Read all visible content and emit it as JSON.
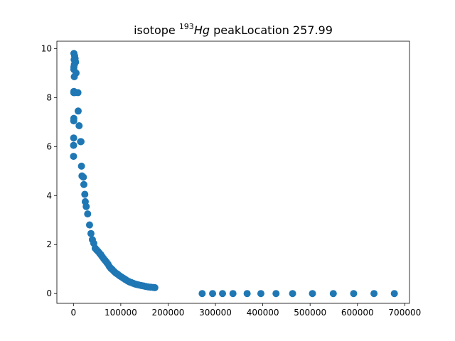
{
  "chart_data": {
    "type": "scatter",
    "title": {
      "prefix": "isotope ",
      "superscript": "193",
      "italic": "Hg",
      "suffix": " peakLocation 257.99"
    },
    "xlabel": "",
    "ylabel": "",
    "xlim": [
      -35000,
      710000
    ],
    "ylim": [
      -0.4,
      10.3
    ],
    "x_ticks": [
      {
        "value": 0,
        "label": "0"
      },
      {
        "value": 100000,
        "label": "100000"
      },
      {
        "value": 200000,
        "label": "200000"
      },
      {
        "value": 300000,
        "label": "300000"
      },
      {
        "value": 400000,
        "label": "400000"
      },
      {
        "value": 500000,
        "label": "500000"
      },
      {
        "value": 600000,
        "label": "600000"
      },
      {
        "value": 700000,
        "label": "700000"
      }
    ],
    "y_ticks": [
      {
        "value": 0,
        "label": "0"
      },
      {
        "value": 2,
        "label": "2"
      },
      {
        "value": 4,
        "label": "4"
      },
      {
        "value": 6,
        "label": "6"
      },
      {
        "value": 8,
        "label": "8"
      },
      {
        "value": 10,
        "label": "10"
      }
    ],
    "grid": false,
    "marker_color": "#1f77b4",
    "points": [
      [
        1000,
        9.8
      ],
      [
        2500,
        9.7
      ],
      [
        3500,
        9.6
      ],
      [
        1500,
        9.55
      ],
      [
        3000,
        9.5
      ],
      [
        4500,
        9.45
      ],
      [
        2000,
        9.35
      ],
      [
        1000,
        9.25
      ],
      [
        800,
        9.15
      ],
      [
        5500,
        9.0
      ],
      [
        1800,
        8.85
      ],
      [
        1000,
        8.25
      ],
      [
        800,
        8.2
      ],
      [
        3000,
        8.2
      ],
      [
        9500,
        8.2
      ],
      [
        10000,
        7.45
      ],
      [
        800,
        7.15
      ],
      [
        600,
        7.05
      ],
      [
        12000,
        6.85
      ],
      [
        15000,
        6.2
      ],
      [
        16000,
        6.2
      ],
      [
        500,
        6.35
      ],
      [
        300,
        6.05
      ],
      [
        200,
        5.6
      ],
      [
        17000,
        5.2
      ],
      [
        18000,
        4.8
      ],
      [
        21000,
        4.75
      ],
      [
        22000,
        4.45
      ],
      [
        24000,
        4.05
      ],
      [
        25000,
        3.75
      ],
      [
        27000,
        3.55
      ],
      [
        30000,
        3.25
      ],
      [
        34000,
        2.8
      ],
      [
        37000,
        2.45
      ],
      [
        40000,
        2.2
      ],
      [
        43000,
        2.05
      ],
      [
        46000,
        1.85
      ],
      [
        49000,
        1.78
      ],
      [
        52000,
        1.72
      ],
      [
        55000,
        1.65
      ],
      [
        58000,
        1.58
      ],
      [
        61000,
        1.5
      ],
      [
        64000,
        1.42
      ],
      [
        67000,
        1.35
      ],
      [
        70000,
        1.28
      ],
      [
        73000,
        1.2
      ],
      [
        76000,
        1.1
      ],
      [
        79000,
        1.03
      ],
      [
        82000,
        0.98
      ],
      [
        86000,
        0.9
      ],
      [
        90000,
        0.83
      ],
      [
        94000,
        0.78
      ],
      [
        98000,
        0.72
      ],
      [
        102000,
        0.67
      ],
      [
        106000,
        0.62
      ],
      [
        110000,
        0.57
      ],
      [
        114000,
        0.52
      ],
      [
        118000,
        0.48
      ],
      [
        122000,
        0.45
      ],
      [
        126000,
        0.42
      ],
      [
        130000,
        0.39
      ],
      [
        134000,
        0.37
      ],
      [
        138000,
        0.35
      ],
      [
        143000,
        0.33
      ],
      [
        148000,
        0.31
      ],
      [
        153000,
        0.29
      ],
      [
        158000,
        0.27
      ],
      [
        163000,
        0.26
      ],
      [
        168000,
        0.25
      ],
      [
        172000,
        0.24
      ],
      [
        272000,
        0.0
      ],
      [
        294000,
        0.0
      ],
      [
        315000,
        0.0
      ],
      [
        337000,
        0.0
      ],
      [
        367000,
        0.0
      ],
      [
        396000,
        0.0
      ],
      [
        428000,
        0.0
      ],
      [
        463000,
        0.0
      ],
      [
        505000,
        0.0
      ],
      [
        549000,
        0.0
      ],
      [
        592000,
        0.0
      ],
      [
        635000,
        0.0
      ],
      [
        678000,
        0.0
      ]
    ]
  }
}
